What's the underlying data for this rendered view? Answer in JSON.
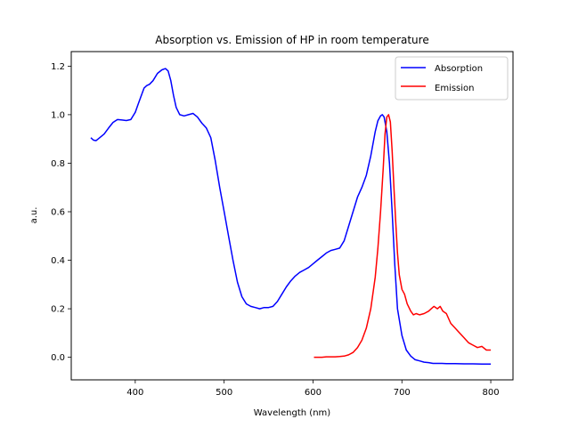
{
  "chart_data": {
    "type": "line",
    "title": "Absorption vs. Emission of HP in room temperature",
    "xlabel": "Wavelength (nm)",
    "ylabel": "a.u.",
    "xlim": [
      328,
      825
    ],
    "ylim": [
      -0.093,
      1.26
    ],
    "xticks": [
      400,
      500,
      600,
      700,
      800
    ],
    "yticks": [
      0.0,
      0.2,
      0.4,
      0.6,
      0.8,
      1.0,
      1.2
    ],
    "xtick_labels": [
      "400",
      "500",
      "600",
      "700",
      "800"
    ],
    "ytick_labels": [
      "0.0",
      "0.2",
      "0.4",
      "0.6",
      "0.8",
      "1.0",
      "1.2"
    ],
    "grid": false,
    "legend_position": "top-right",
    "series": [
      {
        "name": "Absorption",
        "color": "#0000ff",
        "x": [
          350,
          353,
          356,
          360,
          365,
          370,
          375,
          380,
          385,
          390,
          395,
          400,
          403,
          406,
          410,
          413,
          416,
          420,
          425,
          430,
          434,
          437,
          440,
          443,
          446,
          450,
          455,
          460,
          465,
          470,
          475,
          480,
          485,
          490,
          495,
          500,
          505,
          510,
          515,
          520,
          525,
          530,
          535,
          540,
          545,
          550,
          555,
          560,
          565,
          570,
          575,
          580,
          585,
          590,
          595,
          600,
          605,
          610,
          615,
          620,
          625,
          630,
          635,
          640,
          645,
          650,
          655,
          660,
          665,
          670,
          673,
          676,
          678,
          680,
          683,
          686,
          689,
          692,
          695,
          700,
          705,
          710,
          715,
          720,
          725,
          730,
          735,
          740,
          745,
          750,
          760,
          770,
          780,
          790,
          800
        ],
        "y": [
          0.905,
          0.895,
          0.893,
          0.905,
          0.92,
          0.945,
          0.968,
          0.98,
          0.978,
          0.976,
          0.98,
          1.01,
          1.04,
          1.07,
          1.11,
          1.12,
          1.125,
          1.14,
          1.17,
          1.185,
          1.19,
          1.18,
          1.14,
          1.08,
          1.03,
          1.0,
          0.995,
          1.0,
          1.005,
          0.99,
          0.965,
          0.945,
          0.905,
          0.81,
          0.7,
          0.6,
          0.5,
          0.4,
          0.31,
          0.25,
          0.22,
          0.21,
          0.205,
          0.2,
          0.205,
          0.205,
          0.21,
          0.23,
          0.26,
          0.29,
          0.315,
          0.335,
          0.35,
          0.36,
          0.37,
          0.385,
          0.4,
          0.415,
          0.43,
          0.44,
          0.445,
          0.45,
          0.48,
          0.54,
          0.6,
          0.66,
          0.7,
          0.75,
          0.83,
          0.93,
          0.975,
          0.995,
          1.0,
          0.99,
          0.93,
          0.8,
          0.6,
          0.38,
          0.2,
          0.09,
          0.03,
          0.005,
          -0.01,
          -0.015,
          -0.02,
          -0.022,
          -0.025,
          -0.025,
          -0.025,
          -0.026,
          -0.026,
          -0.027,
          -0.027,
          -0.028,
          -0.028
        ]
      },
      {
        "name": "Emission",
        "color": "#ff0000",
        "x": [
          601,
          605,
          610,
          615,
          620,
          625,
          630,
          635,
          640,
          645,
          650,
          655,
          660,
          665,
          670,
          673,
          676,
          679,
          681,
          683,
          685,
          687,
          689,
          691,
          693,
          695,
          697,
          700,
          703,
          706,
          710,
          713,
          716,
          720,
          725,
          730,
          733,
          736,
          740,
          743,
          746,
          750,
          755,
          760,
          765,
          770,
          775,
          780,
          785,
          790,
          795,
          800
        ],
        "y": [
          0.0,
          0.0,
          0.0,
          0.002,
          0.002,
          0.002,
          0.003,
          0.005,
          0.01,
          0.02,
          0.04,
          0.07,
          0.12,
          0.2,
          0.33,
          0.45,
          0.6,
          0.78,
          0.92,
          0.99,
          1.0,
          0.97,
          0.85,
          0.7,
          0.56,
          0.43,
          0.34,
          0.28,
          0.26,
          0.22,
          0.19,
          0.175,
          0.18,
          0.175,
          0.18,
          0.19,
          0.2,
          0.21,
          0.2,
          0.21,
          0.19,
          0.18,
          0.14,
          0.12,
          0.1,
          0.08,
          0.06,
          0.05,
          0.04,
          0.045,
          0.03,
          0.03
        ]
      }
    ]
  }
}
